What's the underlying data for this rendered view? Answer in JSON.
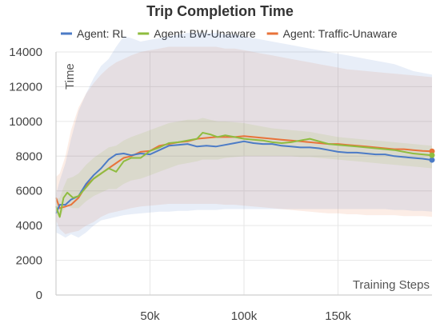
{
  "chart_data": {
    "type": "line",
    "title": "Trip Completion Time",
    "xlabel": "Training Steps",
    "ylabel": "Time",
    "xlim": [
      0,
      200000
    ],
    "ylim": [
      0,
      14000
    ],
    "x_ticks": [
      50000,
      100000,
      150000
    ],
    "x_tick_labels": [
      "50k",
      "100k",
      "150k"
    ],
    "y_ticks": [
      0,
      2000,
      4000,
      6000,
      8000,
      10000,
      12000,
      14000
    ],
    "y_tick_labels": [
      "0",
      "2000",
      "4000",
      "6000",
      "8000",
      "10000",
      "12000",
      "14000"
    ],
    "grid": true,
    "legend_position": "top",
    "series": [
      {
        "name": "Agent: RL",
        "color": "#4c7bc6",
        "x": [
          0,
          2000,
          5000,
          8000,
          12000,
          16000,
          20000,
          24000,
          28000,
          32000,
          36000,
          40000,
          45000,
          50000,
          55000,
          60000,
          65000,
          70000,
          75000,
          80000,
          85000,
          90000,
          95000,
          100000,
          105000,
          110000,
          115000,
          120000,
          125000,
          130000,
          135000,
          140000,
          145000,
          150000,
          155000,
          160000,
          165000,
          170000,
          175000,
          180000,
          185000,
          190000,
          195000,
          200000
        ],
        "y": [
          4700,
          5200,
          5200,
          5500,
          5700,
          6400,
          6900,
          7300,
          7800,
          8100,
          8150,
          8050,
          8150,
          8100,
          8350,
          8600,
          8650,
          8700,
          8550,
          8600,
          8550,
          8650,
          8750,
          8850,
          8750,
          8700,
          8700,
          8600,
          8550,
          8500,
          8500,
          8450,
          8350,
          8250,
          8200,
          8200,
          8150,
          8100,
          8100,
          8000,
          7950,
          7900,
          7850,
          7780
        ],
        "upper": [
          5800,
          6600,
          7600,
          9000,
          10600,
          11600,
          12500,
          13200,
          13600,
          14300,
          14900,
          14800,
          14600,
          14700,
          14800,
          14900,
          15000,
          15100,
          15100,
          15100,
          15100,
          15000,
          15000,
          14900,
          14800,
          14700,
          14600,
          14500,
          14400,
          14300,
          14200,
          14100,
          14000,
          13900,
          13800,
          13700,
          13600,
          13500,
          13400,
          13300,
          13100,
          12900,
          12800,
          12700
        ],
        "lower": [
          3600,
          3500,
          3300,
          3500,
          3300,
          3600,
          4000,
          4300,
          4400,
          4500,
          4600,
          4650,
          4700,
          4750,
          4800,
          4800,
          4850,
          4850,
          4900,
          4900,
          4900,
          4950,
          4950,
          4950,
          4950,
          4950,
          4950,
          4950,
          4950,
          4950,
          4950,
          4950,
          4950,
          4950,
          4950,
          4950,
          4950,
          4950,
          4950,
          4900,
          4900,
          4850,
          4850,
          4800
        ]
      },
      {
        "name": "Agent: BW-Unaware",
        "color": "#8fbc3f",
        "x": [
          0,
          2000,
          4000,
          6000,
          9000,
          12000,
          16000,
          20000,
          24000,
          28000,
          32000,
          36000,
          40000,
          45000,
          50000,
          55000,
          60000,
          65000,
          70000,
          75000,
          78000,
          82000,
          86000,
          90000,
          95000,
          100000,
          105000,
          110000,
          115000,
          120000,
          125000,
          130000,
          135000,
          140000,
          145000,
          150000,
          155000,
          160000,
          165000,
          170000,
          175000,
          180000,
          185000,
          190000,
          195000,
          200000
        ],
        "y": [
          5100,
          4500,
          5600,
          5900,
          5600,
          5700,
          6200,
          6700,
          7000,
          7300,
          7100,
          7700,
          7900,
          7900,
          8300,
          8500,
          8750,
          8800,
          8900,
          9000,
          9350,
          9250,
          9100,
          9200,
          9100,
          9000,
          8950,
          8900,
          8800,
          8750,
          8800,
          8900,
          9000,
          8850,
          8700,
          8650,
          8600,
          8550,
          8500,
          8450,
          8400,
          8350,
          8250,
          8150,
          8100,
          8050
        ],
        "upper": [
          5500,
          5600,
          6200,
          6700,
          6800,
          7000,
          7500,
          7900,
          8200,
          8500,
          8600,
          8900,
          9100,
          9300,
          9500,
          9700,
          9900,
          10000,
          10100,
          10100,
          10200,
          10100,
          10000,
          10000,
          9950,
          9900,
          9800,
          9700,
          9600,
          9550,
          9500,
          9450,
          9400,
          9300,
          9200,
          9100,
          9050,
          9000,
          8950,
          8900,
          8850,
          8800,
          8750,
          8700,
          8650,
          8600
        ],
        "lower": [
          4700,
          4400,
          4900,
          5100,
          5000,
          5000,
          5400,
          5700,
          5900,
          6100,
          6100,
          6400,
          6600,
          6700,
          6900,
          7100,
          7300,
          7500,
          7600,
          7700,
          7800,
          7800,
          7800,
          7900,
          7950,
          8000,
          8000,
          8000,
          8000,
          8000,
          8000,
          7950,
          7950,
          7900,
          7850,
          7800,
          7750,
          7700,
          7650,
          7600,
          7550,
          7500,
          7450,
          7400,
          7350,
          7300
        ]
      },
      {
        "name": "Agent: Traffic-Unaware",
        "color": "#e8733a",
        "x": [
          0,
          2000,
          5000,
          8000,
          12000,
          16000,
          20000,
          24000,
          28000,
          32000,
          36000,
          40000,
          45000,
          50000,
          55000,
          60000,
          65000,
          70000,
          75000,
          80000,
          85000,
          90000,
          95000,
          100000,
          105000,
          110000,
          115000,
          120000,
          125000,
          130000,
          135000,
          140000,
          145000,
          150000,
          155000,
          160000,
          165000,
          170000,
          175000,
          180000,
          185000,
          190000,
          195000,
          200000
        ],
        "y": [
          5600,
          5000,
          5100,
          5200,
          5600,
          6300,
          6700,
          7000,
          7300,
          7600,
          7900,
          8000,
          8250,
          8300,
          8600,
          8700,
          8800,
          8850,
          9000,
          9050,
          9100,
          9100,
          9100,
          9150,
          9100,
          9050,
          9000,
          8950,
          8900,
          8850,
          8800,
          8750,
          8700,
          8700,
          8650,
          8600,
          8550,
          8500,
          8450,
          8400,
          8400,
          8350,
          8300,
          8280
        ],
        "upper": [
          6800,
          7000,
          8000,
          9500,
          10800,
          11600,
          12200,
          12700,
          13100,
          13400,
          13600,
          13800,
          14000,
          14100,
          14200,
          14300,
          14300,
          14300,
          14300,
          14300,
          14300,
          14200,
          14200,
          14100,
          14000,
          13900,
          13800,
          13700,
          13600,
          13500,
          13400,
          13300,
          13200,
          13100,
          13000,
          12950,
          12900,
          12850,
          12800,
          12750,
          12700,
          12650,
          12600,
          12550
        ],
        "lower": [
          4300,
          3800,
          3500,
          3600,
          3700,
          4000,
          4200,
          4500,
          4700,
          4800,
          4900,
          5000,
          5100,
          5150,
          5200,
          5250,
          5250,
          5250,
          5250,
          5250,
          5250,
          5200,
          5200,
          5150,
          5100,
          5050,
          5000,
          4950,
          4900,
          4850,
          4800,
          4750,
          4700,
          4700,
          4650,
          4650,
          4600,
          4600,
          4600,
          4600,
          4550,
          4550,
          4550,
          4500
        ]
      }
    ]
  }
}
